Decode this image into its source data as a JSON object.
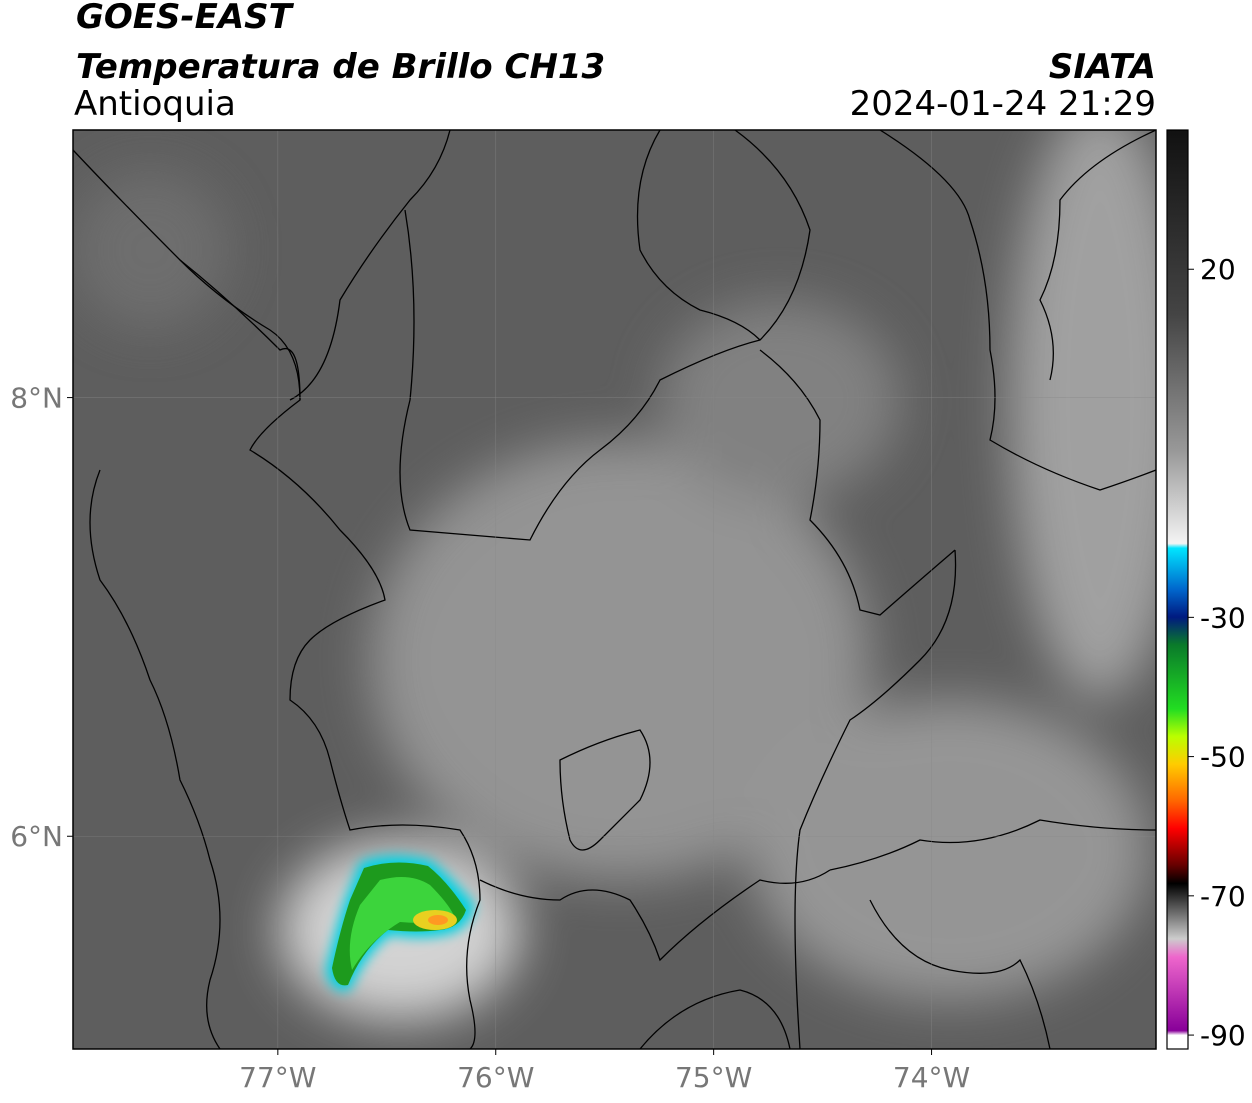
{
  "header": {
    "title": "GOES-EAST",
    "subtitle": "Temperatura de Brillo CH13",
    "region": "Antioquia",
    "source": "SIATA",
    "datetime": "2024-01-24 21:29"
  },
  "map": {
    "xlim": [
      -77.94,
      -72.97
    ],
    "ylim": [
      5.03,
      9.22
    ],
    "xticks": [
      {
        "value": -77,
        "label": "77°W"
      },
      {
        "value": -76,
        "label": "76°W"
      },
      {
        "value": -75,
        "label": "75°W"
      },
      {
        "value": -74,
        "label": "74°W"
      }
    ],
    "yticks": [
      {
        "value": 8,
        "label": "8°N"
      },
      {
        "value": 6,
        "label": "6°N"
      }
    ],
    "grid": true
  },
  "colorbar": {
    "clim": [
      -92,
      40
    ],
    "ticks": [
      20,
      -30,
      -50,
      -70,
      -90
    ]
  }
}
